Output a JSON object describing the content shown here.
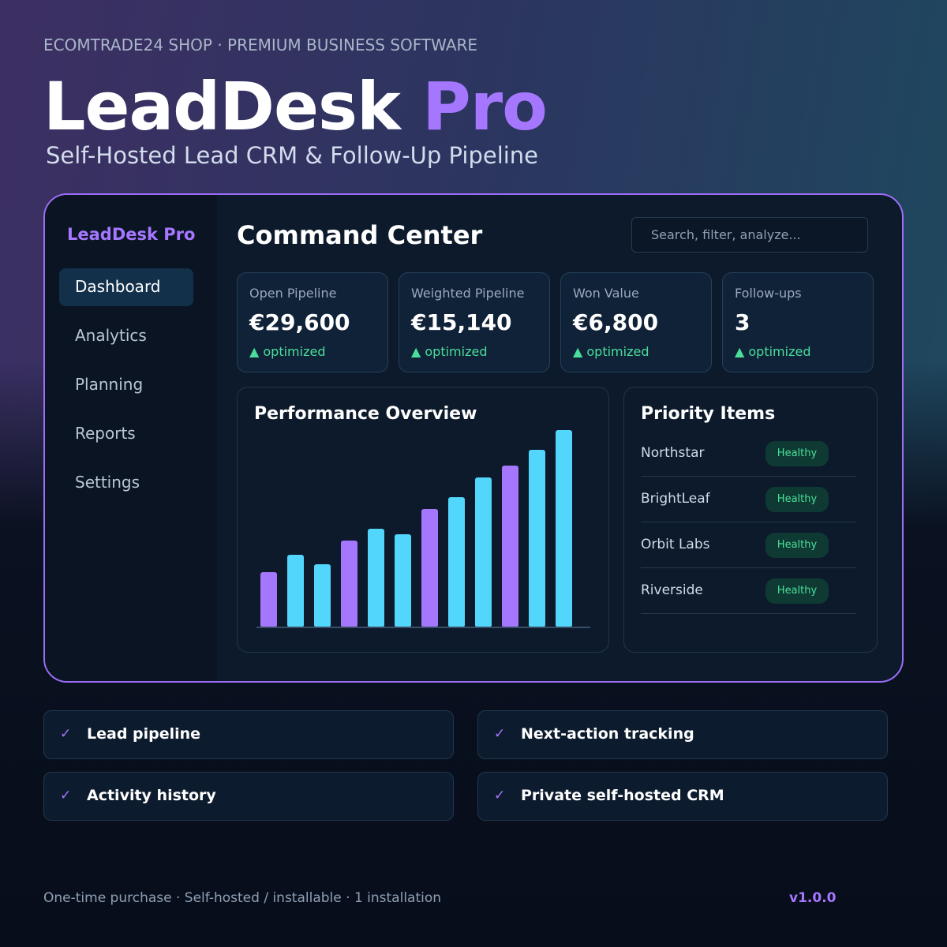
{
  "header": {
    "eyebrow": "ECOMTRADE24 SHOP · PREMIUM BUSINESS SOFTWARE",
    "title_main": "LeadDesk",
    "title_accent": "Pro",
    "subtitle": "Self-Hosted Lead CRM & Follow-Up Pipeline"
  },
  "sidebar": {
    "brand": "LeadDesk Pro",
    "nav": [
      "Dashboard",
      "Analytics",
      "Planning",
      "Reports",
      "Settings"
    ]
  },
  "main": {
    "heading": "Command Center",
    "search_placeholder": "Search, filter, analyze...",
    "kpis": [
      {
        "label": "Open Pipeline",
        "value": "€29,600",
        "delta": "▲ optimized"
      },
      {
        "label": "Weighted Pipeline",
        "value": "€15,140",
        "delta": "▲ optimized"
      },
      {
        "label": "Won Value",
        "value": "€6,800",
        "delta": "▲ optimized"
      },
      {
        "label": "Follow-ups",
        "value": "3",
        "delta": "▲ optimized"
      }
    ]
  },
  "chart_data": {
    "type": "bar",
    "title": "Performance Overview",
    "values": [
      70,
      92,
      80,
      110,
      125,
      118,
      150,
      165,
      190,
      205,
      225,
      250
    ],
    "colors": [
      "#a577ff",
      "#52d6fc",
      "#52d6fc",
      "#a577ff",
      "#52d6fc",
      "#52d6fc",
      "#a577ff",
      "#52d6fc",
      "#52d6fc",
      "#a577ff",
      "#52d6fc",
      "#52d6fc"
    ]
  },
  "priority": {
    "title": "Priority Items",
    "items": [
      {
        "name": "Northstar",
        "status": "Healthy"
      },
      {
        "name": "BrightLeaf",
        "status": "Healthy"
      },
      {
        "name": "Orbit Labs",
        "status": "Healthy"
      },
      {
        "name": "Riverside",
        "status": "Healthy"
      }
    ]
  },
  "features": [
    {
      "check": "✓",
      "text": "Lead pipeline"
    },
    {
      "check": "✓",
      "text": "Next-action tracking"
    },
    {
      "check": "✓",
      "text": "Activity history"
    },
    {
      "check": "✓",
      "text": "Private self-hosted CRM"
    }
  ],
  "footer": {
    "note": "One-time purchase · Self-hosted / installable · 1 installation",
    "version": "v1.0.0"
  }
}
